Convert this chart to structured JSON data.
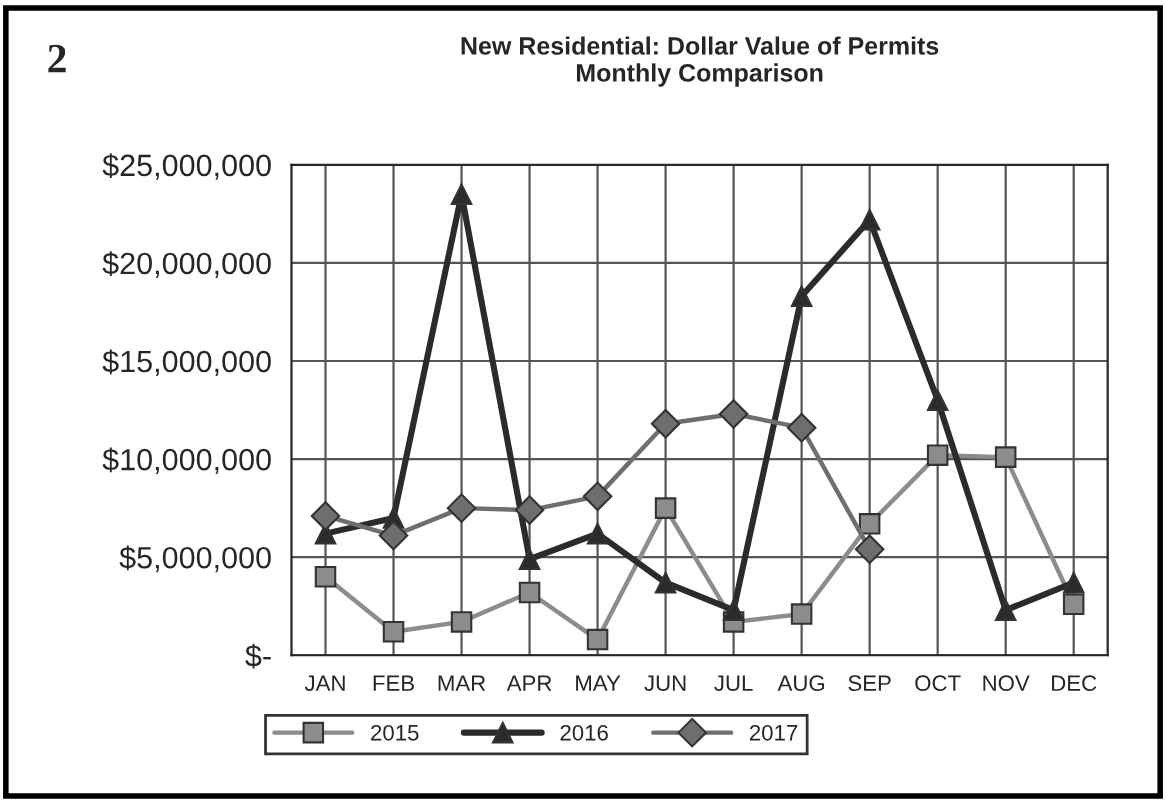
{
  "chart_data": {
    "type": "line",
    "title": "New Residential: Dollar Value of Permits\nMonthly Comparison",
    "categories": [
      "JAN",
      "FEB",
      "MAR",
      "APR",
      "MAY",
      "JUN",
      "JUL",
      "AUG",
      "SEP",
      "OCT",
      "NOV",
      "DEC"
    ],
    "series": [
      {
        "name": "2015",
        "color": "#8c8c8c",
        "marker": "square",
        "values": [
          4000000.0,
          1200000.0,
          1700000.0,
          3200000.0,
          800000.0,
          7500000.0,
          1700000.0,
          2100000.0,
          6700000.0,
          10200000.0,
          10100000.0,
          2600000.0
        ]
      },
      {
        "name": "2016",
        "color": "#2b2b2b",
        "marker": "triangle",
        "values": [
          6200000.0,
          7000000.0,
          23500000.0,
          4900000.0,
          6200000.0,
          3700000.0,
          2300000.0,
          18300000.0,
          22200000.0,
          13000000.0,
          2300000.0,
          3700000.0
        ]
      },
      {
        "name": "2017",
        "color": "#6e6e6e",
        "marker": "diamond",
        "values": [
          7100000.0,
          6100000.0,
          7500000.0,
          7400000.0,
          8100000.0,
          11800000.0,
          12300000.0,
          11600000.0,
          5400000.0,
          null,
          null,
          null
        ]
      }
    ],
    "ylim": [
      0,
      25000000
    ],
    "yticks": [
      {
        "value": 0,
        "label": "$-"
      },
      {
        "value": 5000000,
        "label": "$5,000,000"
      },
      {
        "value": 10000000,
        "label": "$10,000,000"
      },
      {
        "value": 15000000,
        "label": "$15,000,000"
      },
      {
        "value": 20000000,
        "label": "$20,000,000"
      },
      {
        "value": 25000000,
        "label": "$25,000,000"
      }
    ],
    "grid": true,
    "legend": "bottom",
    "line_style": "solid",
    "annotations": [
      "2"
    ]
  }
}
